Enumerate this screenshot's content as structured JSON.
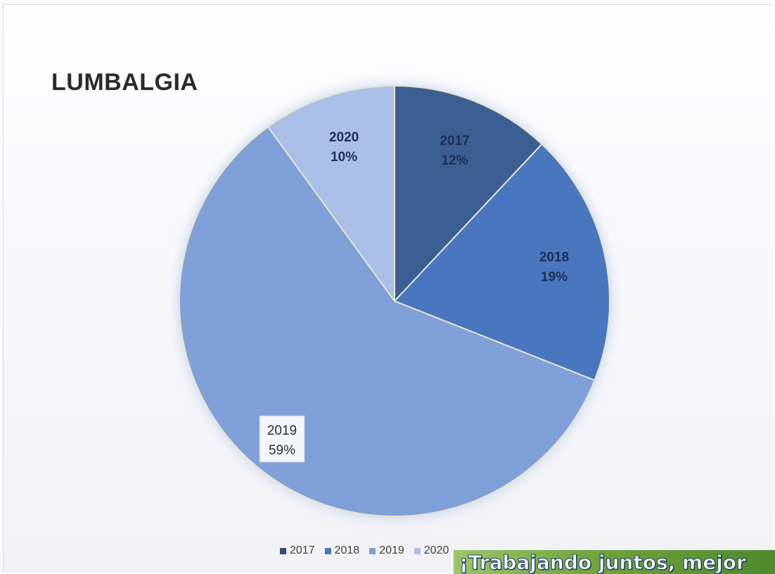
{
  "chart_data": {
    "type": "pie",
    "title": "LUMBALGIA",
    "slices": [
      {
        "label": "2017",
        "value": 12,
        "value_label": "12%",
        "color": "#3a5f93"
      },
      {
        "label": "2018",
        "value": 19,
        "value_label": "19%",
        "color": "#4a77bf"
      },
      {
        "label": "2019",
        "value": 59,
        "value_label": "59%",
        "color": "#7f9fd9"
      },
      {
        "label": "2020",
        "value": 10,
        "value_label": "10%",
        "color": "#a9bfe8"
      }
    ],
    "start_angle_deg": 0,
    "direction": "clockwise",
    "legend": {
      "position": "bottom",
      "items": [
        {
          "label": "2017",
          "color": "#2f4f73"
        },
        {
          "label": "2018",
          "color": "#4a77bf"
        },
        {
          "label": "2019",
          "color": "#7f9fd9"
        },
        {
          "label": "2020",
          "color": "#a9bfe8"
        }
      ]
    }
  },
  "footer": {
    "text": "¡Trabajando juntos, mejor"
  }
}
